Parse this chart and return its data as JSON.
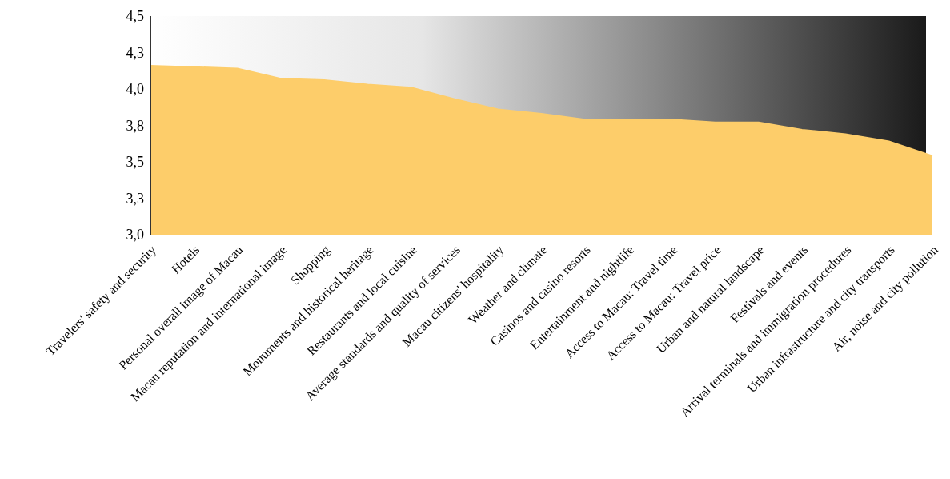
{
  "chart_data": {
    "type": "area",
    "categories": [
      "Travelers' safety and security",
      "Hotels",
      "Personal overall image of Macau",
      "Macau reputation and international image",
      "Shopping",
      "Monuments and historical heritage",
      "Restaurants and local cuisine",
      "Average standards and quality of services",
      "Macau citizens' hospitality",
      "Weather and climate",
      "Casinos and casino resorts",
      "Entertainment and nightlife",
      "Access to Macau: Travel time",
      "Access to Macau: Travel price",
      "Urban and natural landscape",
      "Festivals and events",
      "Arrival terminals and immigration procedures",
      "Urban infrastructure and city transports",
      "Air, noise and city pollution"
    ],
    "values": [
      4.16,
      4.15,
      4.14,
      4.07,
      4.06,
      4.03,
      4.01,
      3.93,
      3.86,
      3.83,
      3.79,
      3.79,
      3.79,
      3.77,
      3.77,
      3.72,
      3.69,
      3.64,
      3.54
    ],
    "color": "#fdcd6a",
    "ylim": [
      3.0,
      4.5
    ],
    "yticks": [
      {
        "value": 3.0,
        "label": "3,0"
      },
      {
        "value": 3.25,
        "label": "3,3"
      },
      {
        "value": 3.5,
        "label": "3,5"
      },
      {
        "value": 3.75,
        "label": "3,8"
      },
      {
        "value": 4.0,
        "label": "4,0"
      },
      {
        "value": 4.25,
        "label": "4,3"
      },
      {
        "value": 4.5,
        "label": "4,5"
      }
    ],
    "grid": false,
    "legend": false
  }
}
